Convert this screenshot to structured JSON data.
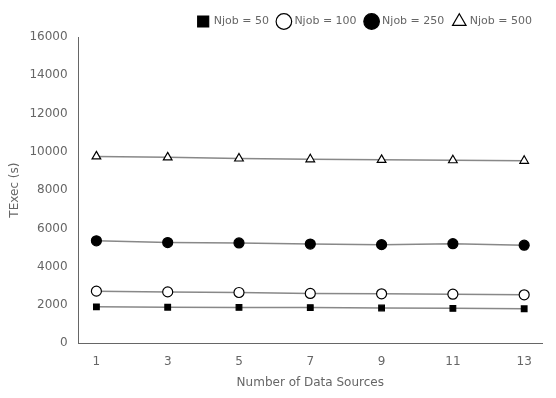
{
  "chart_data": {
    "type": "line",
    "xlabel": "Number of Data Sources",
    "ylabel": "TExec (s)",
    "x": [
      1,
      3,
      5,
      7,
      9,
      11,
      13
    ],
    "series": [
      {
        "name": "Njob = 50",
        "color": "#888888",
        "marker": "filled_square",
        "values": [
          1900,
          1880,
          1870,
          1860,
          1840,
          1820,
          1800
        ]
      },
      {
        "name": "Njob = 100",
        "color": "#888888",
        "marker": "open_circle",
        "values": [
          2720,
          2680,
          2650,
          2600,
          2580,
          2560,
          2530
        ]
      },
      {
        "name": "Njob = 250",
        "color": "#888888",
        "marker": "filled_circle",
        "values": [
          5350,
          5260,
          5240,
          5180,
          5150,
          5200,
          5120
        ]
      },
      {
        "name": "Njob = 500",
        "color": "#888888",
        "marker": "open_triangle",
        "values": [
          9760,
          9710,
          9650,
          9610,
          9580,
          9560,
          9530
        ]
      }
    ],
    "xlim": [
      0.5,
      13.5
    ],
    "ylim": [
      0,
      16000
    ],
    "xticks": [
      1,
      3,
      5,
      7,
      9,
      11,
      13
    ],
    "yticks": [
      0,
      2000,
      4000,
      6000,
      8000,
      10000,
      12000,
      14000,
      16000
    ],
    "grid": false,
    "legend": "upper right"
  }
}
